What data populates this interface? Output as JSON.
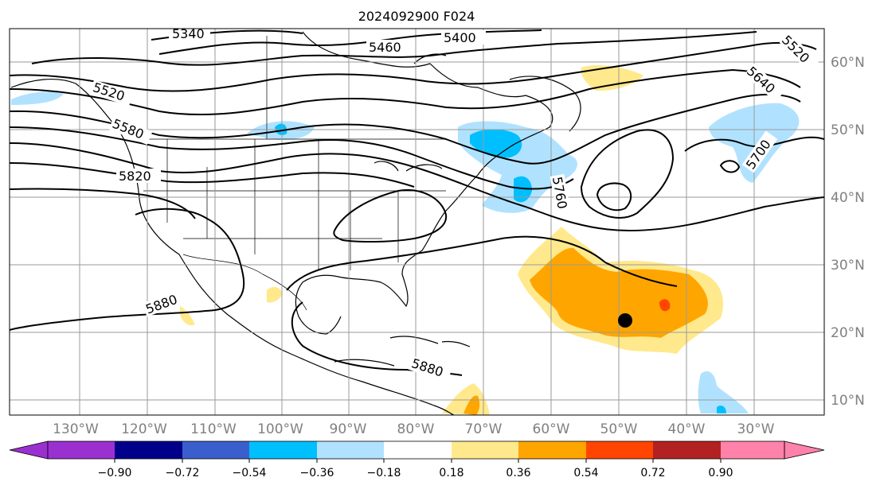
{
  "title": "2024092900 F024",
  "map": {
    "lon_ticks": [
      "130°W",
      "120°W",
      "110°W",
      "100°W",
      "90°W",
      "80°W",
      "70°W",
      "60°W",
      "50°W",
      "40°W",
      "30°W"
    ],
    "lat_ticks": [
      "60°N",
      "50°N",
      "40°N",
      "30°N",
      "20°N",
      "10°N"
    ],
    "contour_labels": [
      "5340",
      "5400",
      "5460",
      "5520",
      "5520",
      "5580",
      "5640",
      "5700",
      "5760",
      "5820",
      "5880",
      "5880"
    ],
    "marker": "storm-center-dot"
  },
  "colorbar": {
    "ticks": [
      "−0.90",
      "−0.72",
      "−0.54",
      "−0.36",
      "−0.18",
      "0.18",
      "0.36",
      "0.54",
      "0.72",
      "0.90"
    ],
    "colors": [
      "#9b30d0",
      "#00008b",
      "#3a5fcd",
      "#00bfff",
      "#b0e2ff",
      "#ffffff",
      "#ffe98c",
      "#ffa500",
      "#ff4500",
      "#b22222",
      "#ff82ab"
    ]
  }
}
